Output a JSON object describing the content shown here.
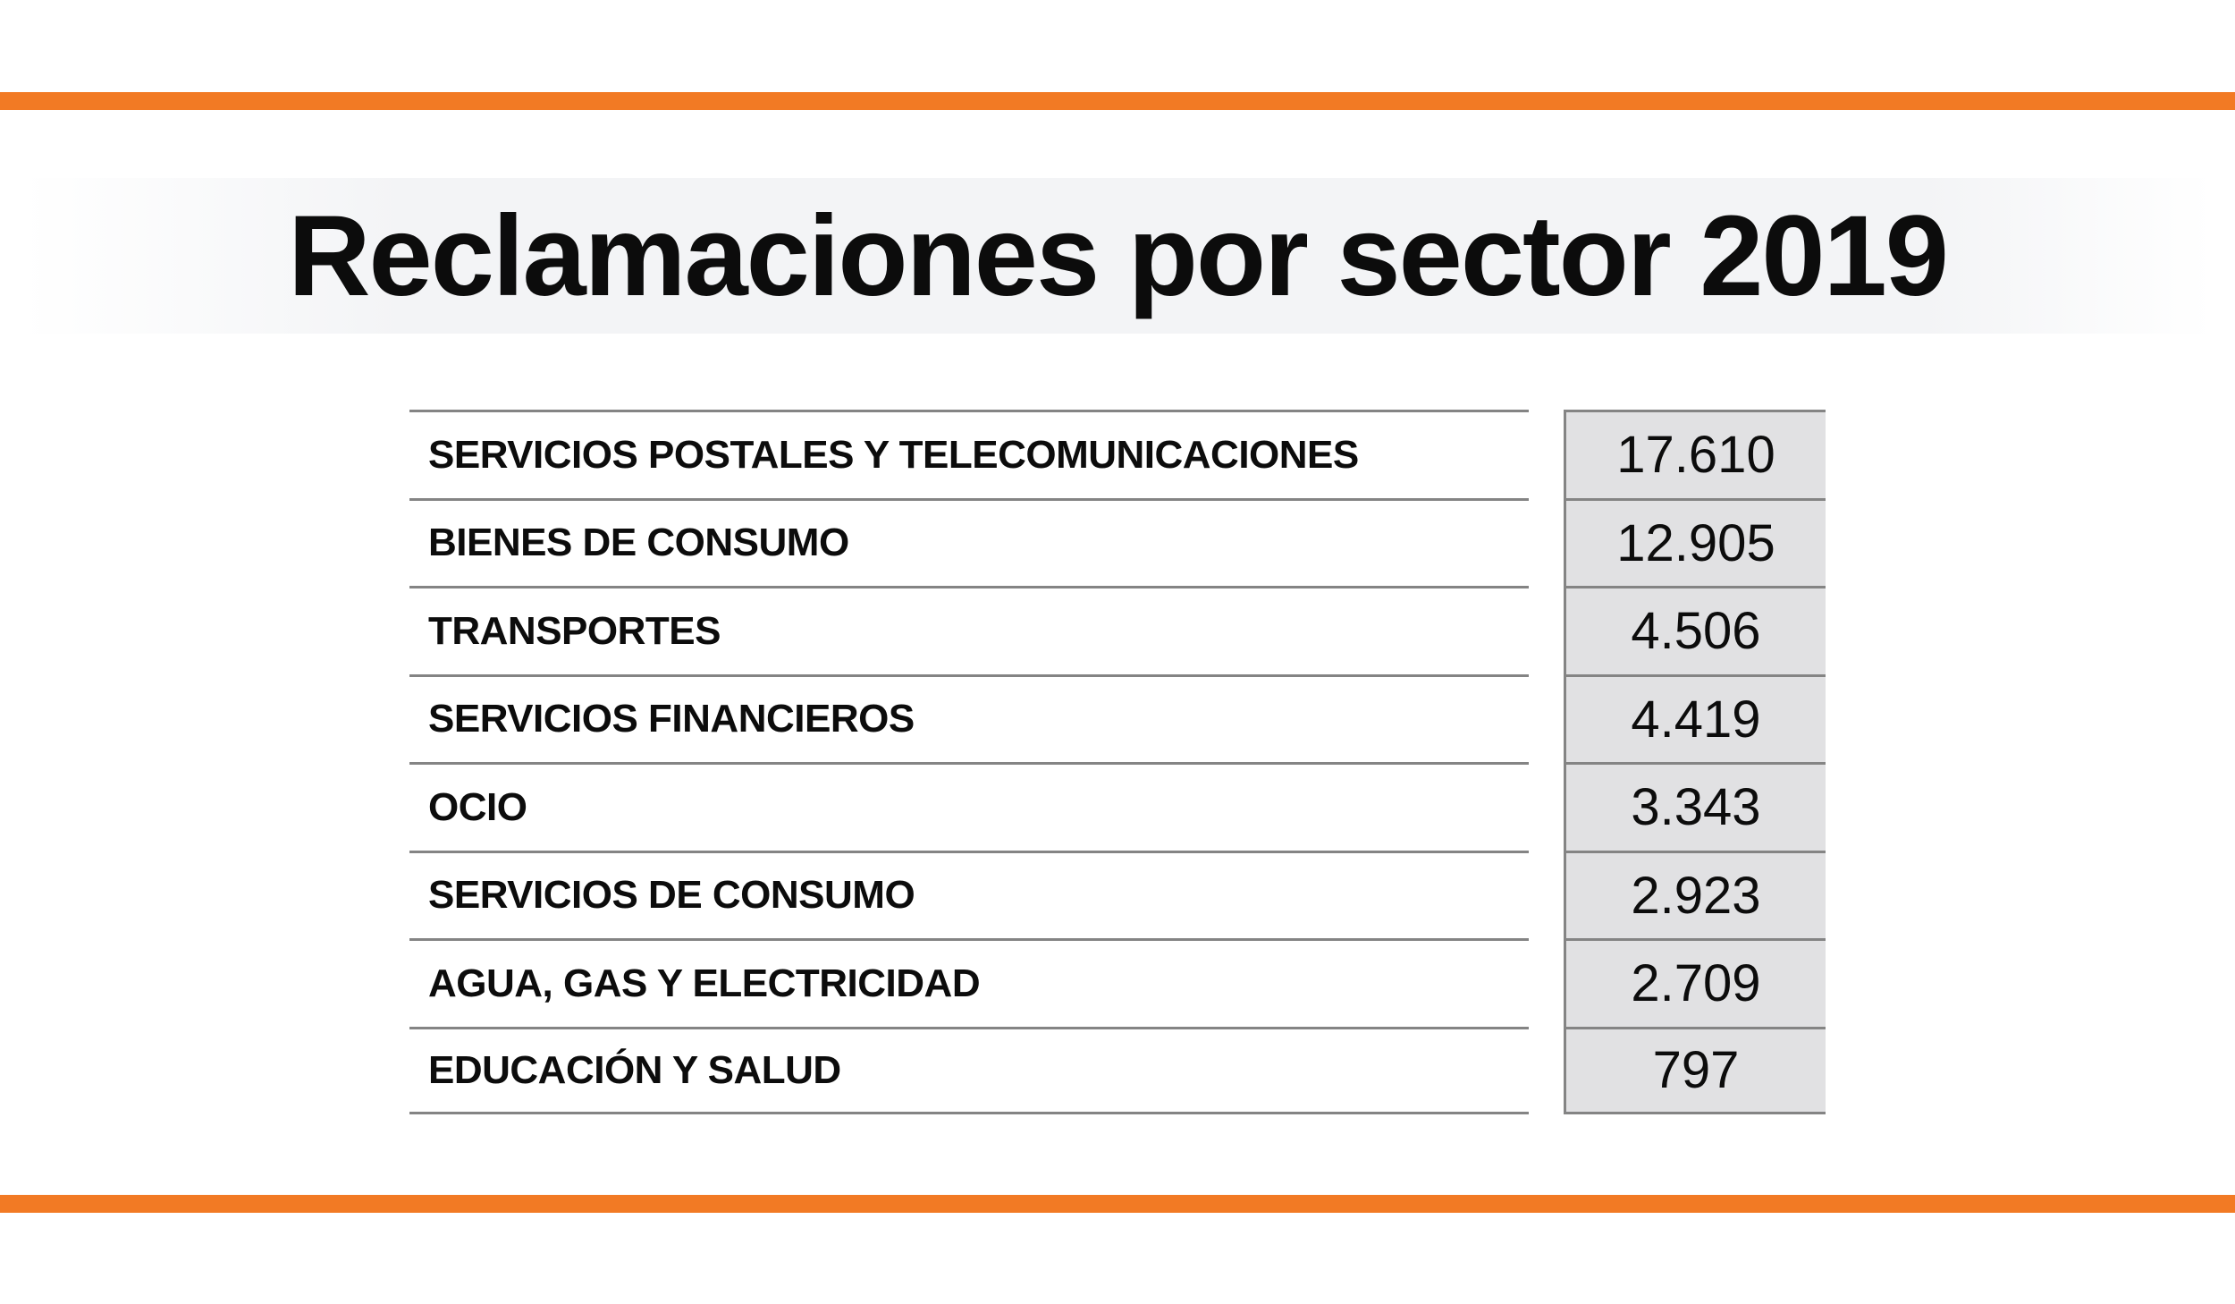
{
  "title": "Reclamaciones por sector 2019",
  "colors": {
    "accent_orange": "#f27a24",
    "title_band_bg": "#f3f4f6",
    "value_column_bg": "#e1e1e3",
    "table_border": "#848484",
    "text": "#0c0c0c"
  },
  "table": {
    "rows": [
      {
        "label": "SERVICIOS POSTALES Y TELECOMUNICACIONES",
        "value": "17.610"
      },
      {
        "label": "BIENES DE CONSUMO",
        "value": "12.905"
      },
      {
        "label": "TRANSPORTES",
        "value": "4.506"
      },
      {
        "label": "SERVICIOS FINANCIEROS",
        "value": "4.419"
      },
      {
        "label": "OCIO",
        "value": "3.343"
      },
      {
        "label": "SERVICIOS DE CONSUMO",
        "value": "2.923"
      },
      {
        "label": "AGUA, GAS Y ELECTRICIDAD",
        "value": "2.709"
      },
      {
        "label": "EDUCACIÓN Y SALUD",
        "value": "797"
      }
    ]
  },
  "chart_data": {
    "type": "table",
    "title": "Reclamaciones por sector 2019",
    "categories": [
      "SERVICIOS POSTALES Y TELECOMUNICACIONES",
      "BIENES DE CONSUMO",
      "TRANSPORTES",
      "SERVICIOS FINANCIEROS",
      "OCIO",
      "SERVICIOS DE CONSUMO",
      "AGUA, GAS Y ELECTRICIDAD",
      "EDUCACIÓN Y SALUD"
    ],
    "values": [
      17610,
      12905,
      4506,
      4419,
      3343,
      2923,
      2709,
      797
    ],
    "value_labels": [
      "17.610",
      "12.905",
      "4.506",
      "4.419",
      "3.343",
      "2.923",
      "2.709",
      "797"
    ]
  }
}
